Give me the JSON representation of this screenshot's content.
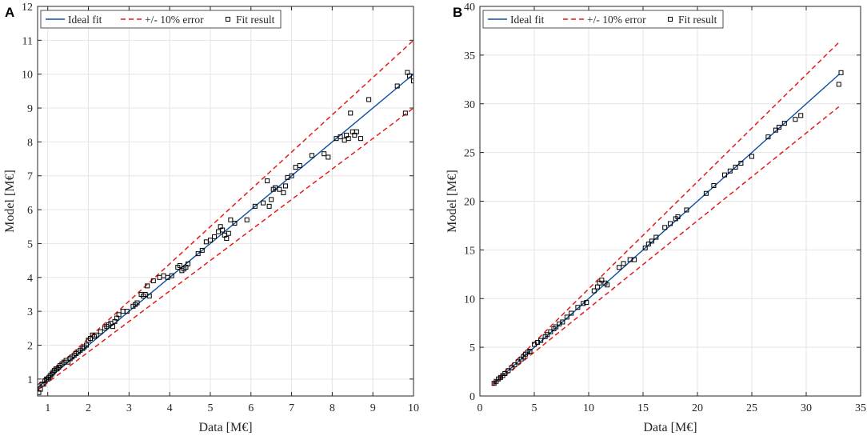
{
  "chart_data": [
    {
      "type": "scatter",
      "panel": "A",
      "xlabel": "Data [M€]",
      "ylabel": "Model [M€]",
      "xlim": [
        0.75,
        10
      ],
      "ylim": [
        0.5,
        12
      ],
      "xticks": [
        1,
        2,
        3,
        4,
        5,
        6,
        7,
        8,
        9,
        10
      ],
      "yticks": [
        1,
        2,
        3,
        4,
        5,
        6,
        7,
        8,
        9,
        10,
        11,
        12
      ],
      "grid": true,
      "legend_position": "top-left",
      "legend": [
        "Ideal fit",
        "+/- 10% error",
        "Fit result"
      ],
      "series": [
        {
          "name": "Ideal fit",
          "kind": "line",
          "color": "#0d4fa0",
          "x": [
            0.75,
            10
          ],
          "y": [
            0.75,
            10
          ]
        },
        {
          "name": "+/- 10% error",
          "kind": "dashed",
          "color": "#e31a1c",
          "x": [
            0.75,
            10
          ],
          "y": [
            0.825,
            11
          ]
        },
        {
          "name": "+/- 10% error",
          "kind": "dashed",
          "color": "#e31a1c",
          "x": [
            0.75,
            10
          ],
          "y": [
            0.675,
            9
          ]
        },
        {
          "name": "Fit result",
          "kind": "marker",
          "color": "#000000",
          "x": [
            0.78,
            0.82,
            0.86,
            0.9,
            0.93,
            0.97,
            1.0,
            1.03,
            1.06,
            1.1,
            1.13,
            1.16,
            1.2,
            1.23,
            1.27,
            1.3,
            1.35,
            1.4,
            1.45,
            1.5,
            1.55,
            1.6,
            1.65,
            1.7,
            1.75,
            1.8,
            1.86,
            1.9,
            1.95,
            2.0,
            2.05,
            2.1,
            2.15,
            2.2,
            2.3,
            2.4,
            2.45,
            2.5,
            2.55,
            2.6,
            2.65,
            2.7,
            2.75,
            2.85,
            2.95,
            3.1,
            3.15,
            3.2,
            3.3,
            3.35,
            3.4,
            3.45,
            3.5,
            3.6,
            3.75,
            3.85,
            3.95,
            4.05,
            4.2,
            4.25,
            4.3,
            4.35,
            4.4,
            4.45,
            4.7,
            4.8,
            4.9,
            5.0,
            5.1,
            5.2,
            5.25,
            5.3,
            5.35,
            5.4,
            5.45,
            5.5,
            5.6,
            5.9,
            6.1,
            6.3,
            6.4,
            6.45,
            6.5,
            6.55,
            6.6,
            6.7,
            6.8,
            6.85,
            6.9,
            7.0,
            7.1,
            7.2,
            7.5,
            7.8,
            7.9,
            8.1,
            8.2,
            8.3,
            8.35,
            8.4,
            8.45,
            8.5,
            8.55,
            8.6,
            8.7,
            8.9,
            9.6,
            9.8,
            9.85,
            9.9,
            10.0
          ],
          "y": [
            0.6,
            0.7,
            0.85,
            0.85,
            0.95,
            1.0,
            1.0,
            1.05,
            1.1,
            1.15,
            1.2,
            1.25,
            1.3,
            1.3,
            1.35,
            1.4,
            1.45,
            1.5,
            1.55,
            1.5,
            1.6,
            1.65,
            1.7,
            1.75,
            1.8,
            1.85,
            1.9,
            1.95,
            2.0,
            2.15,
            2.2,
            2.3,
            2.25,
            2.3,
            2.4,
            2.5,
            2.55,
            2.6,
            2.65,
            2.55,
            2.7,
            2.8,
            2.9,
            3.0,
            3.0,
            3.15,
            3.2,
            3.25,
            3.5,
            3.45,
            3.5,
            3.75,
            3.45,
            3.9,
            4.0,
            4.05,
            4.0,
            4.05,
            4.3,
            4.35,
            4.2,
            4.25,
            4.3,
            4.4,
            4.7,
            4.8,
            5.05,
            5.1,
            5.2,
            5.35,
            5.5,
            5.4,
            5.25,
            5.15,
            5.3,
            5.7,
            5.6,
            5.7,
            6.1,
            6.2,
            6.85,
            6.1,
            6.3,
            6.6,
            6.65,
            6.6,
            6.5,
            6.7,
            6.95,
            7.0,
            7.25,
            7.3,
            7.6,
            7.65,
            7.55,
            8.1,
            8.15,
            8.05,
            8.2,
            8.1,
            8.85,
            8.3,
            8.2,
            8.3,
            8.1,
            9.25,
            9.65,
            8.85,
            10.05,
            9.95,
            9.8
          ]
        }
      ]
    },
    {
      "type": "scatter",
      "panel": "B",
      "xlabel": "Data [M€]",
      "ylabel": "Model [M€]",
      "xlim": [
        0,
        35
      ],
      "ylim": [
        0,
        40
      ],
      "xticks": [
        0,
        5,
        10,
        15,
        20,
        25,
        30,
        35
      ],
      "yticks": [
        0,
        5,
        10,
        15,
        20,
        25,
        30,
        35,
        40
      ],
      "grid": true,
      "legend_position": "top-left",
      "legend": [
        "Ideal fit",
        "+/- 10% error",
        "Fit result"
      ],
      "series": [
        {
          "name": "Ideal fit",
          "kind": "line",
          "color": "#0d4fa0",
          "x": [
            1.2,
            33
          ],
          "y": [
            1.2,
            33
          ]
        },
        {
          "name": "+/- 10% error",
          "kind": "dashed",
          "color": "#e31a1c",
          "x": [
            1.2,
            33
          ],
          "y": [
            1.32,
            36.3
          ]
        },
        {
          "name": "+/- 10% error",
          "kind": "dashed",
          "color": "#e31a1c",
          "x": [
            1.2,
            33
          ],
          "y": [
            1.08,
            29.7
          ]
        },
        {
          "name": "Fit result",
          "kind": "marker",
          "color": "#000000",
          "x": [
            1.3,
            1.5,
            1.7,
            1.9,
            2.1,
            2.3,
            2.6,
            2.9,
            3.2,
            3.5,
            3.8,
            4.0,
            4.2,
            4.4,
            4.6,
            5.0,
            5.3,
            5.6,
            6.0,
            6.2,
            6.5,
            6.8,
            7.0,
            7.3,
            7.6,
            8.0,
            8.4,
            9.0,
            9.5,
            9.8,
            10.5,
            10.8,
            11.0,
            11.2,
            11.5,
            11.7,
            12.8,
            13.2,
            13.8,
            14.2,
            15.2,
            15.5,
            15.8,
            16.2,
            17.0,
            17.5,
            18.0,
            18.2,
            19.0,
            20.8,
            21.5,
            22.5,
            23.0,
            23.5,
            24.0,
            25.0,
            26.5,
            27.2,
            27.5,
            28.0,
            29.0,
            29.5,
            33.0,
            33.2
          ],
          "y": [
            1.3,
            1.5,
            1.75,
            1.9,
            2.1,
            2.3,
            2.6,
            2.9,
            3.2,
            3.5,
            3.8,
            4.0,
            4.3,
            4.5,
            4.6,
            5.3,
            5.5,
            5.7,
            6.1,
            6.3,
            6.6,
            6.9,
            7.1,
            7.4,
            7.6,
            8.1,
            8.5,
            9.1,
            9.5,
            9.6,
            10.8,
            11.2,
            11.6,
            11.9,
            11.6,
            11.4,
            13.2,
            13.6,
            14.0,
            14.0,
            15.2,
            15.6,
            15.9,
            16.3,
            17.3,
            17.7,
            18.2,
            18.4,
            19.1,
            20.8,
            21.6,
            22.7,
            23.1,
            23.5,
            23.9,
            24.6,
            26.6,
            27.3,
            27.6,
            28.0,
            28.4,
            28.8,
            32.0,
            33.2
          ]
        }
      ]
    }
  ]
}
